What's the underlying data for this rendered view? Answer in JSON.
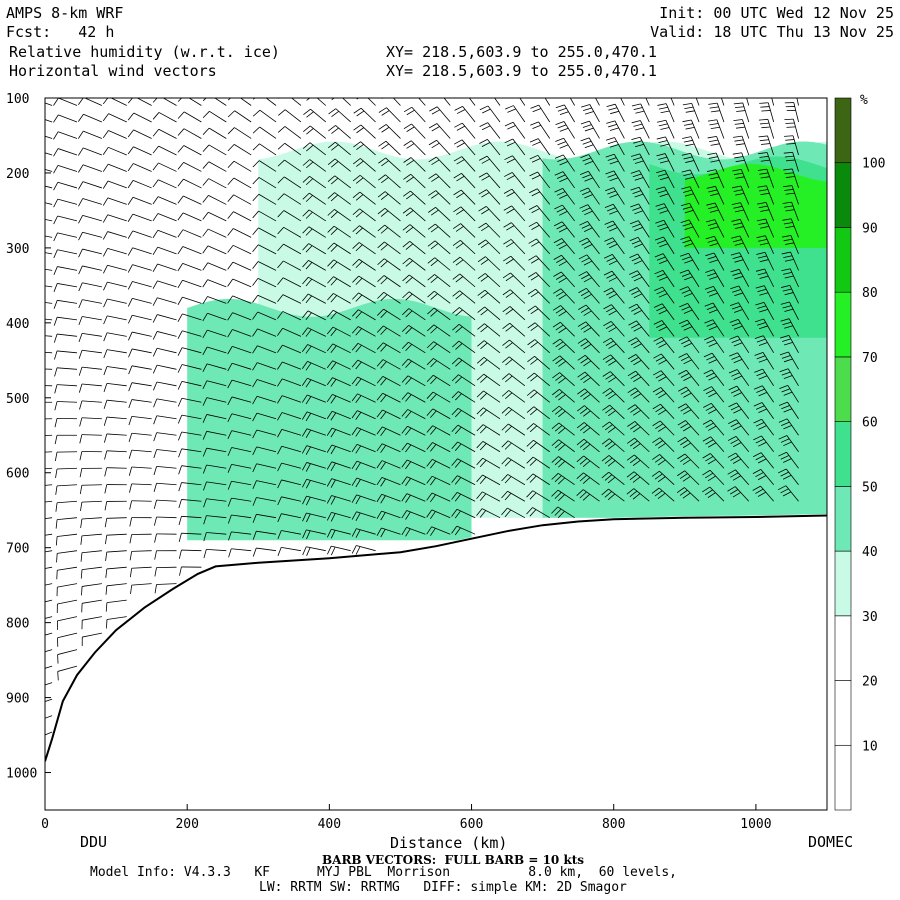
{
  "header": {
    "model": "AMPS 8-km WRF",
    "forecast": "Fcst:   42 h",
    "field1": "Relative humidity (w.r.t. ice)",
    "field2": "Horizontal wind vectors",
    "xy1": "XY= 218.5,603.9 to 255.0,470.1",
    "xy2": "XY= 218.5,603.9 to 255.0,470.1",
    "init": "Init: 00 UTC Wed 12 Nov 25",
    "valid": "Valid: 18 UTC Thu 13 Nov 25"
  },
  "footer": {
    "left_station": "DDU",
    "right_station": "DOMEC",
    "xlabel": "Distance (km)",
    "barb_note": "BARB VECTORS:  FULL BARB = 10 kts",
    "model_info": "Model Info: V4.3.3   KF      MYJ PBL  Morrison          8.0 km,  60 levels,",
    "model_info2": "LW: RRTM SW: RRTMG   DIFF: simple KM: 2D Smagor"
  },
  "chart_data": {
    "type": "heatmap",
    "title": "Relative humidity (w.r.t. ice)",
    "xlabel": "Distance (km)",
    "ylabel": "",
    "xlim": [
      0,
      1100
    ],
    "ylim": [
      1050,
      100
    ],
    "x_ticks": [
      0,
      200,
      400,
      600,
      800,
      1000
    ],
    "y_ticks": [
      100,
      200,
      300,
      400,
      500,
      600,
      700,
      800,
      900,
      1000
    ],
    "colorbar": {
      "unit": "%",
      "levels": [
        10,
        20,
        30,
        40,
        50,
        60,
        70,
        80,
        90,
        100
      ],
      "colors": [
        "#ffffff",
        "#ffffff",
        "#ffffff",
        "#c8fae6",
        "#6ee8b4",
        "#3fe08e",
        "#4cdc4c",
        "#25f025",
        "#12c812",
        "#0a8a0a",
        "#3c6614"
      ]
    },
    "terrain_pressure": [
      [
        0,
        985
      ],
      [
        10,
        955
      ],
      [
        25,
        905
      ],
      [
        45,
        870
      ],
      [
        70,
        840
      ],
      [
        100,
        810
      ],
      [
        140,
        780
      ],
      [
        180,
        755
      ],
      [
        215,
        735
      ],
      [
        240,
        725
      ],
      [
        300,
        720
      ],
      [
        400,
        714
      ],
      [
        500,
        706
      ],
      [
        550,
        698
      ],
      [
        600,
        688
      ],
      [
        650,
        678
      ],
      [
        700,
        670
      ],
      [
        750,
        665
      ],
      [
        800,
        662
      ],
      [
        900,
        660
      ],
      [
        1000,
        659
      ],
      [
        1100,
        657
      ]
    ],
    "rh_regions": [
      {
        "level": 35,
        "x": [
          300,
          1100
        ],
        "p": [
          170,
          660
        ]
      },
      {
        "level": 45,
        "x": [
          700,
          1100
        ],
        "p": [
          170,
          660
        ]
      },
      {
        "level": 55,
        "x": [
          850,
          1100
        ],
        "p": [
          190,
          420
        ]
      },
      {
        "level": 70,
        "x": [
          900,
          1100
        ],
        "p": [
          200,
          300
        ]
      },
      {
        "level": 45,
        "x": [
          200,
          600
        ],
        "p": [
          380,
          690
        ]
      }
    ],
    "barbs": "wind barbs plotted on a regular grid (full barb = 10 kts)"
  },
  "colors": {
    "terrain": "#000000",
    "frame": "#000000"
  }
}
